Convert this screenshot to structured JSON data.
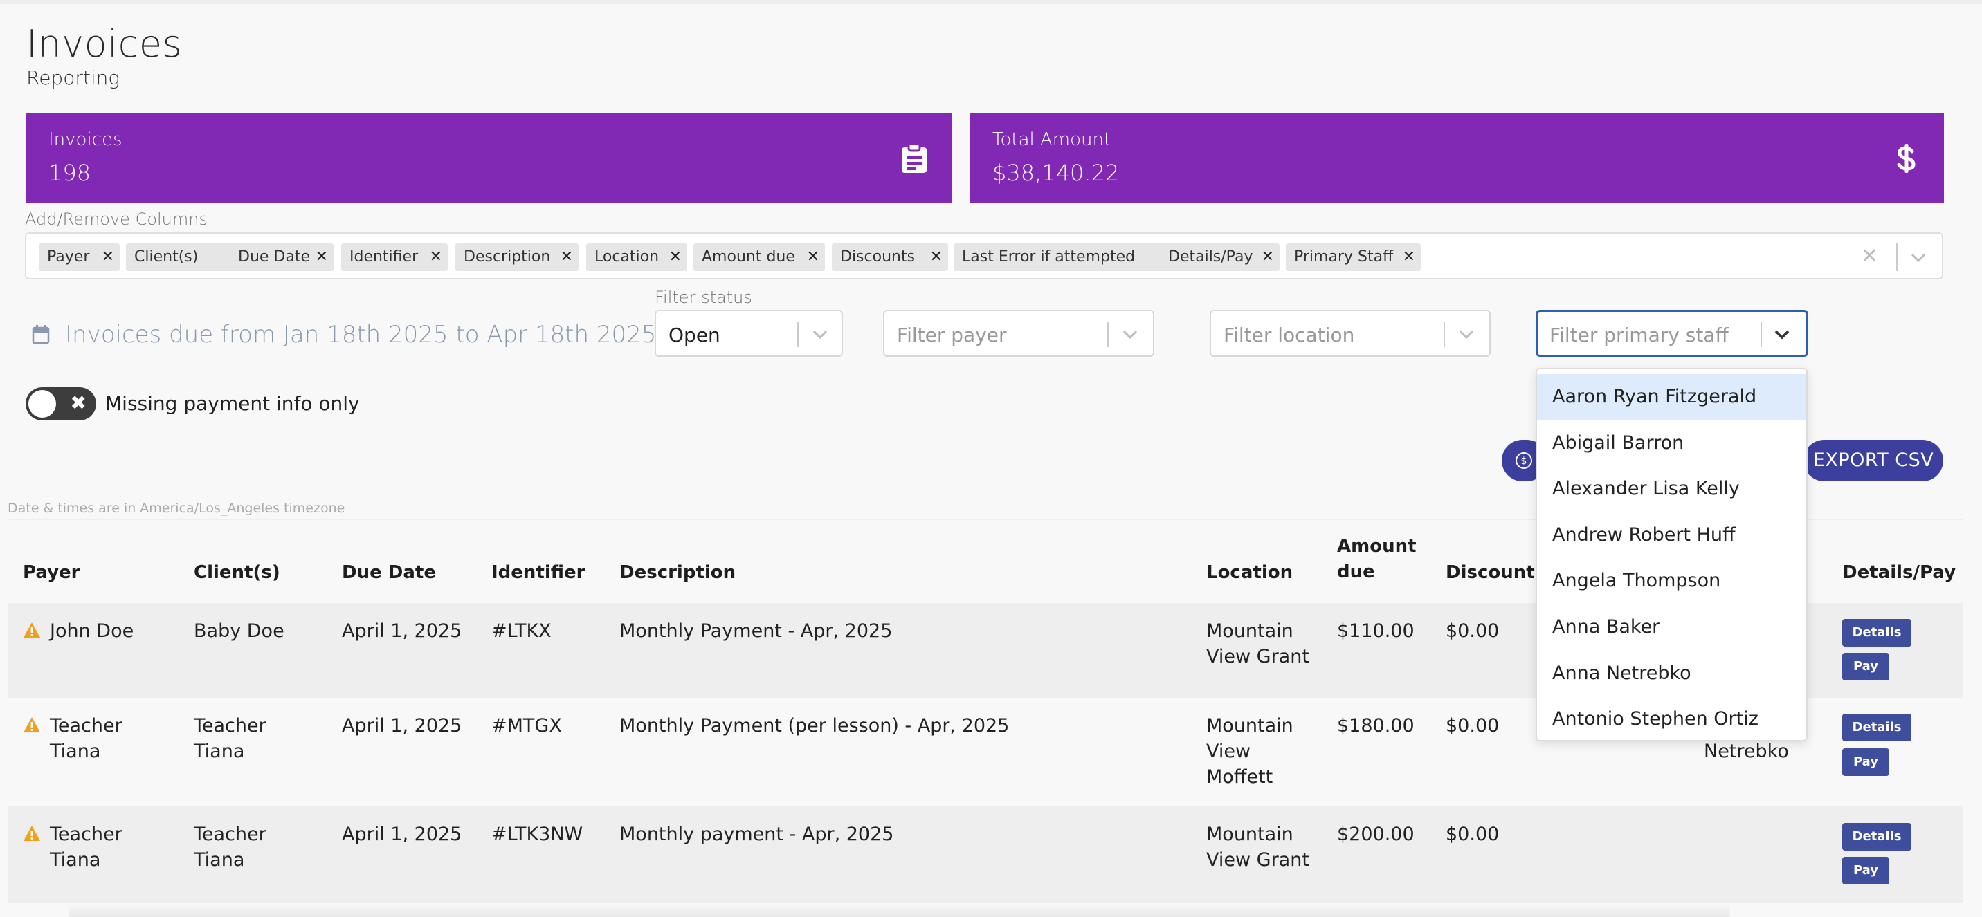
{
  "page": {
    "title": "Invoices",
    "subtitle": "Reporting"
  },
  "stats": {
    "invoices": {
      "label": "Invoices",
      "value": "198",
      "icon": "clipboard-icon"
    },
    "total": {
      "label": "Total Amount",
      "value": "$38,140.22",
      "icon": "dollar-icon"
    }
  },
  "columns": {
    "label": "Add/Remove Columns",
    "chips": [
      "Payer",
      "Client(s)",
      "Due Date",
      "Identifier",
      "Description",
      "Location",
      "Amount due",
      "Discounts",
      "Last Error if attempted",
      "Details/Pay",
      "Primary Staff"
    ]
  },
  "filters": {
    "date_range": "Invoices due from Jan 18th 2025 to Apr 18th 2025",
    "status_label": "Filter status",
    "status_value": "Open",
    "payer_placeholder": "Filter payer",
    "location_placeholder": "Filter location",
    "staff_placeholder": "Filter primary staff"
  },
  "toggle": {
    "label": "Missing payment info only",
    "on": false
  },
  "actions": {
    "export": "EXPORT CSV"
  },
  "timezone_note": "Date & times are in America/Los_Angeles timezone",
  "table": {
    "headers": {
      "payer": "Payer",
      "clients": "Client(s)",
      "due": "Due Date",
      "identifier": "Identifier",
      "description": "Description",
      "location": "Location",
      "amount_1": "Amount",
      "amount_2": "due",
      "discounts": "Discounts",
      "details": "Details/Pay"
    },
    "rows": [
      {
        "payer": [
          "John Doe"
        ],
        "clients": [
          "Baby Doe"
        ],
        "due": "April 1, 2025",
        "identifier": "#LTKX",
        "description": "Monthly Payment - Apr, 2025",
        "location": [
          "Mountain",
          "View Grant"
        ],
        "amount": "$110.00",
        "discounts": "$0.00",
        "staff": [],
        "details": "Details",
        "pay": "Pay"
      },
      {
        "payer": [
          "Teacher",
          "Tiana"
        ],
        "clients": [
          "Teacher",
          "Tiana"
        ],
        "due": "April 1, 2025",
        "identifier": "#MTGX",
        "description": "Monthly Payment (per lesson) - Apr, 2025",
        "location": [
          "Mountain",
          "View",
          "Moffett"
        ],
        "amount": "$180.00",
        "discounts": "$0.00",
        "staff": [
          "Netrebko"
        ],
        "details": "Details",
        "pay": "Pay"
      },
      {
        "payer": [
          "Teacher",
          "Tiana"
        ],
        "clients": [
          "Teacher",
          "Tiana"
        ],
        "due": "April 1, 2025",
        "identifier": "#LTK3NW",
        "description": "Monthly payment - Apr, 2025",
        "location": [
          "Mountain",
          "View Grant"
        ],
        "amount": "$200.00",
        "discounts": "$0.00",
        "staff": [],
        "details": "Details",
        "pay": "Pay"
      }
    ]
  },
  "staff_dropdown": {
    "options": [
      "Aaron Ryan Fitzgerald",
      "Abigail Barron",
      "Alexander Lisa Kelly",
      "Andrew Robert Huff",
      "Angela Thompson",
      "Anna Baker",
      "Anna Netrebko",
      "Antonio Stephen Ortiz"
    ],
    "highlighted": "Aaron Ryan Fitzgerald"
  },
  "colors": {
    "card": "#8129b5",
    "button": "#3c3f9e",
    "small_button": "#3e4d9c",
    "warning": "#f0a020",
    "focus": "#2e5fb8",
    "highlight": "#deebfc"
  }
}
